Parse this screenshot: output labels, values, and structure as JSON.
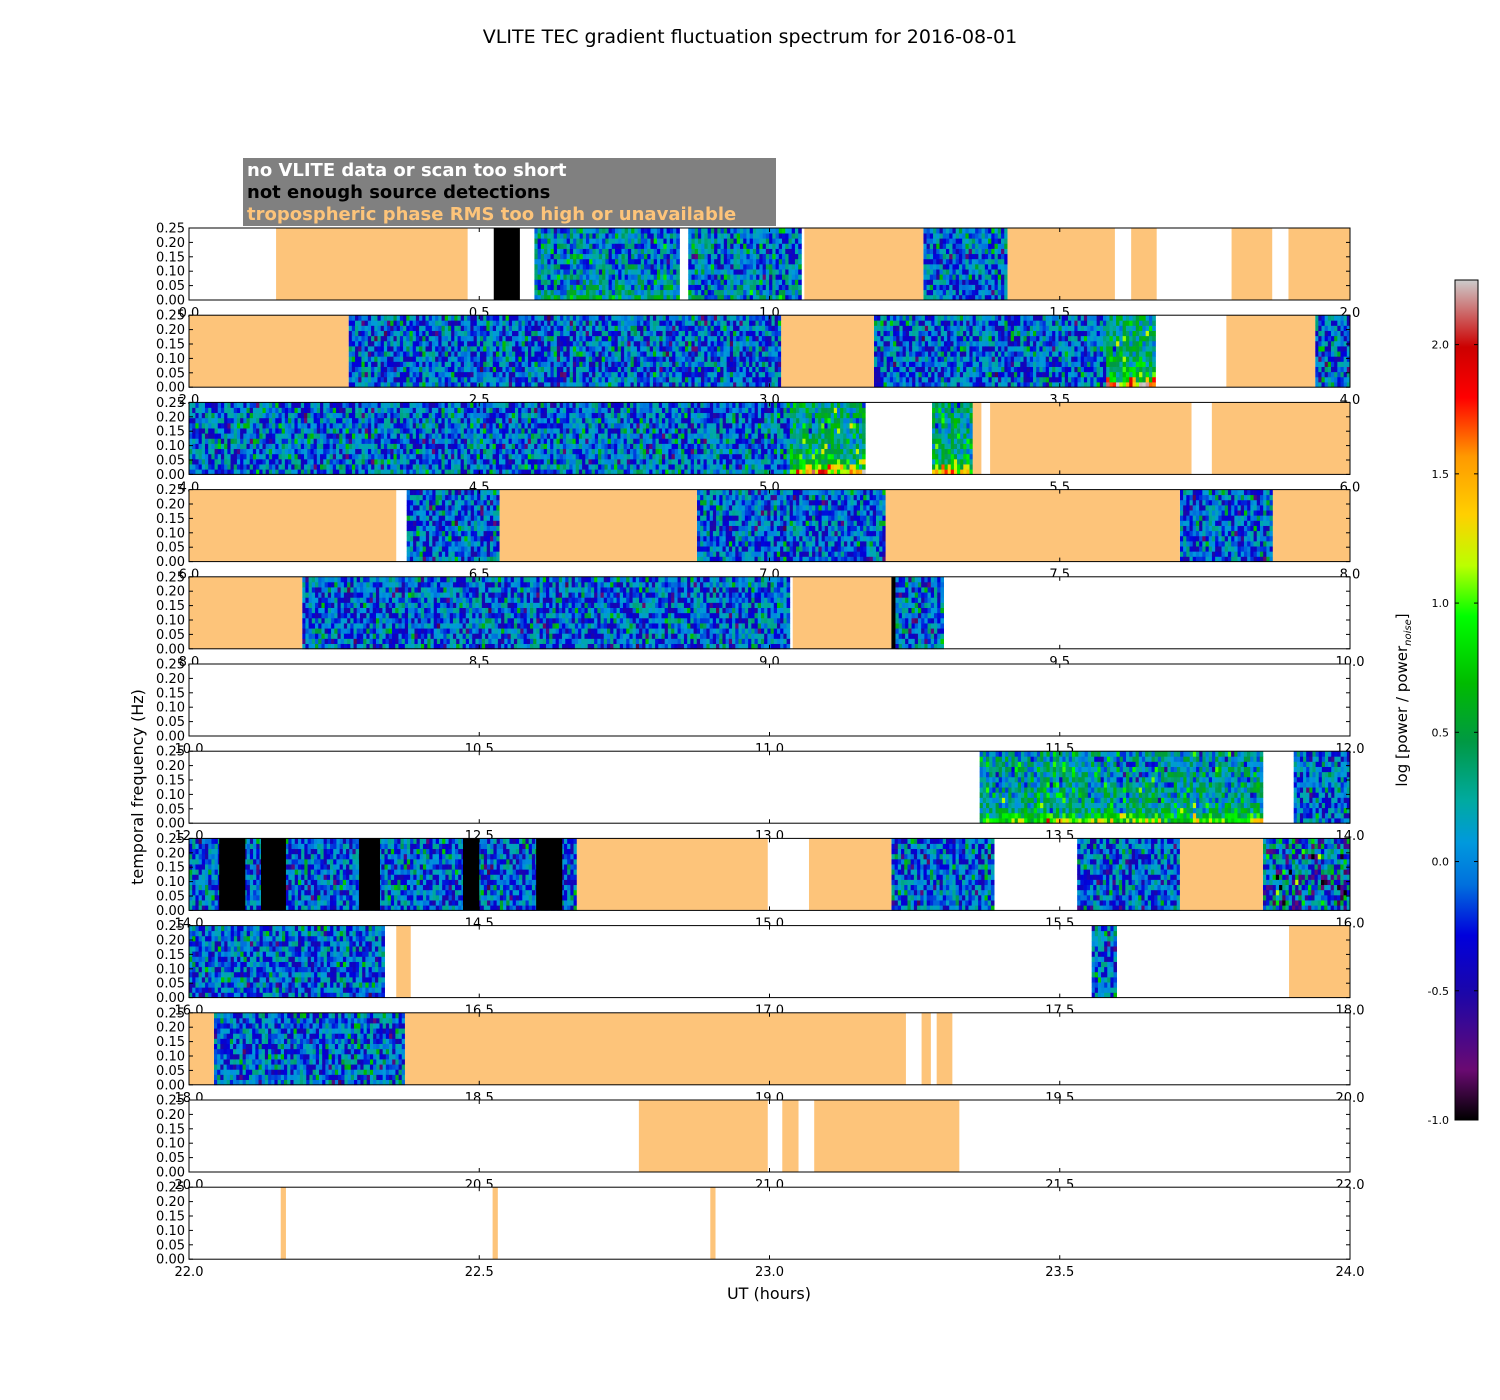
{
  "chart_data": {
    "type": "heatmap",
    "title": "VLITE TEC gradient fluctuation spectrum for 2016-08-01",
    "xlabel": "UT (hours)",
    "ylabel": "temporal frequency (Hz)",
    "colorbar_label": "log [power / power",
    "colorbar_label_sub": "noise",
    "colorbar_label_close": "]",
    "colorbar_range": [
      -1.0,
      2.25
    ],
    "colorbar_ticks": [
      "-1.0",
      "-0.5",
      "0.0",
      "0.5",
      "1.0",
      "1.5",
      "2.0"
    ],
    "colorbar_tick_values": [
      -1.0,
      -0.5,
      0.0,
      0.5,
      1.0,
      1.5,
      2.0
    ],
    "ylim": [
      0.0,
      0.25
    ],
    "y_ticks": [
      "0.00",
      "0.05",
      "0.10",
      "0.15",
      "0.20",
      "0.25"
    ],
    "legend": [
      {
        "label": "no VLITE data or scan too short",
        "color": "#ffffff"
      },
      {
        "label": "not enough source detections",
        "color": "#000000"
      },
      {
        "label": "tropospheric phase RMS too high or unavailable",
        "color": "#fdc47a"
      }
    ],
    "colors": {
      "trop": "#fdc47a",
      "nodet": "#000000",
      "legend_box": "#808080"
    },
    "panels": [
      {
        "xlim": [
          0.0,
          2.0
        ],
        "x_ticks": [
          "0.0",
          "0.5",
          "1.0",
          "1.5",
          "2.0"
        ],
        "x_tick_values": [
          0.0,
          0.5,
          1.0,
          1.5,
          2.0
        ],
        "segments": [
          {
            "type": "trop",
            "start": 0.15,
            "end": 0.48
          },
          {
            "type": "nodet",
            "start": 0.525,
            "end": 0.57
          },
          {
            "type": "spec",
            "start": 0.595,
            "end": 0.845,
            "hot": 0.25
          },
          {
            "type": "spec",
            "start": 0.86,
            "end": 1.055,
            "hot": 0.15
          },
          {
            "type": "trop",
            "start": 1.06,
            "end": 1.265
          },
          {
            "type": "spec",
            "start": 1.265,
            "end": 1.41,
            "hot": 0.0
          },
          {
            "type": "trop",
            "start": 1.41,
            "end": 1.595
          },
          {
            "type": "trop",
            "start": 1.623,
            "end": 1.667
          },
          {
            "type": "trop",
            "start": 1.796,
            "end": 1.866
          },
          {
            "type": "trop",
            "start": 1.894,
            "end": 2.0
          }
        ]
      },
      {
        "xlim": [
          2.0,
          4.0
        ],
        "x_ticks": [
          "2.0",
          "2.5",
          "3.0",
          "3.5",
          "4.0"
        ],
        "x_tick_values": [
          2.0,
          2.5,
          3.0,
          3.5,
          4.0
        ],
        "segments": [
          {
            "type": "trop",
            "start": 2.0,
            "end": 2.275
          },
          {
            "type": "spec",
            "start": 2.275,
            "end": 3.02,
            "hot": 0.0
          },
          {
            "type": "trop",
            "start": 3.02,
            "end": 3.18
          },
          {
            "type": "spec",
            "start": 3.18,
            "end": 3.58,
            "hot": 0.0
          },
          {
            "type": "spec",
            "start": 3.58,
            "end": 3.665,
            "hot": 0.9
          },
          {
            "type": "trop",
            "start": 3.787,
            "end": 3.94
          },
          {
            "type": "spec",
            "start": 3.94,
            "end": 4.0,
            "hot": 0.0
          }
        ]
      },
      {
        "xlim": [
          4.0,
          6.0
        ],
        "x_ticks": [
          "4.0",
          "4.5",
          "5.0",
          "5.5",
          "6.0"
        ],
        "x_tick_values": [
          4.0,
          4.5,
          5.0,
          5.5,
          6.0
        ],
        "segments": [
          {
            "type": "spec",
            "start": 4.0,
            "end": 5.035,
            "hot": 0.05
          },
          {
            "type": "spec",
            "start": 5.035,
            "end": 5.165,
            "hot": 0.85
          },
          {
            "type": "spec",
            "start": 5.28,
            "end": 5.35,
            "hot": 0.8
          },
          {
            "type": "trop",
            "start": 5.35,
            "end": 5.365
          },
          {
            "type": "trop",
            "start": 5.38,
            "end": 5.727
          },
          {
            "type": "trop",
            "start": 5.762,
            "end": 6.0
          }
        ]
      },
      {
        "xlim": [
          6.0,
          8.0
        ],
        "x_ticks": [
          "6.0",
          "6.5",
          "7.0",
          "7.5",
          "8.0"
        ],
        "x_tick_values": [
          6.0,
          6.5,
          7.0,
          7.5,
          8.0
        ],
        "segments": [
          {
            "type": "trop",
            "start": 6.0,
            "end": 6.357
          },
          {
            "type": "spec",
            "start": 6.375,
            "end": 6.535,
            "hot": 0.0
          },
          {
            "type": "trop",
            "start": 6.535,
            "end": 6.875
          },
          {
            "type": "spec",
            "start": 6.875,
            "end": 7.2,
            "hot": 0.0
          },
          {
            "type": "trop",
            "start": 7.2,
            "end": 7.707
          },
          {
            "type": "spec",
            "start": 7.707,
            "end": 7.867,
            "hot": 0.0
          },
          {
            "type": "trop",
            "start": 7.867,
            "end": 8.0
          }
        ]
      },
      {
        "xlim": [
          8.0,
          10.0
        ],
        "x_ticks": [
          "8.0",
          "8.5",
          "9.0",
          "9.5",
          "10.0"
        ],
        "x_tick_values": [
          8.0,
          8.5,
          9.0,
          9.5,
          10.0
        ],
        "segments": [
          {
            "type": "trop",
            "start": 8.0,
            "end": 8.195
          },
          {
            "type": "spec",
            "start": 8.195,
            "end": 9.035,
            "hot": 0.0
          },
          {
            "type": "trop",
            "start": 9.04,
            "end": 9.21
          },
          {
            "type": "nodet",
            "start": 9.21,
            "end": 9.217
          },
          {
            "type": "spec",
            "start": 9.217,
            "end": 9.3,
            "hot": 0.0
          }
        ]
      },
      {
        "xlim": [
          10.0,
          12.0
        ],
        "x_ticks": [
          "10.0",
          "10.5",
          "11.0",
          "11.5",
          "12.0"
        ],
        "x_tick_values": [
          10.0,
          10.5,
          11.0,
          11.5,
          12.0
        ],
        "segments": []
      },
      {
        "xlim": [
          12.0,
          14.0
        ],
        "x_ticks": [
          "12.0",
          "12.5",
          "13.0",
          "13.5",
          "14.0"
        ],
        "x_tick_values": [
          12.0,
          12.5,
          13.0,
          13.5,
          14.0
        ],
        "segments": [
          {
            "type": "spec",
            "start": 13.362,
            "end": 13.85,
            "hot": 0.55
          },
          {
            "type": "spec",
            "start": 13.903,
            "end": 14.0,
            "hot": 0.0
          }
        ]
      },
      {
        "xlim": [
          14.0,
          16.0
        ],
        "x_ticks": [
          "14.0",
          "14.5",
          "15.0",
          "15.5",
          "16.0"
        ],
        "x_tick_values": [
          14.0,
          14.5,
          15.0,
          15.5,
          16.0
        ],
        "segments": [
          {
            "type": "spec",
            "start": 14.0,
            "end": 14.668,
            "hot": 0.0
          },
          {
            "type": "nodet",
            "start": 14.052,
            "end": 14.097
          },
          {
            "type": "nodet",
            "start": 14.124,
            "end": 14.167
          },
          {
            "type": "nodet",
            "start": 14.293,
            "end": 14.329
          },
          {
            "type": "nodet",
            "start": 14.472,
            "end": 14.5
          },
          {
            "type": "nodet",
            "start": 14.598,
            "end": 14.643
          },
          {
            "type": "trop",
            "start": 14.668,
            "end": 14.997
          },
          {
            "type": "trop",
            "start": 15.068,
            "end": 15.21
          },
          {
            "type": "spec",
            "start": 15.21,
            "end": 15.387,
            "hot": 0.0
          },
          {
            "type": "spec",
            "start": 15.53,
            "end": 15.707,
            "hot": 0.0
          },
          {
            "type": "trop",
            "start": 15.707,
            "end": 15.85
          },
          {
            "type": "spec",
            "start": 15.85,
            "end": 16.0,
            "hot": 0.0,
            "speckle": true
          }
        ]
      },
      {
        "xlim": [
          16.0,
          18.0
        ],
        "x_ticks": [
          "16.0",
          "16.5",
          "17.0",
          "17.5",
          "18.0"
        ],
        "x_tick_values": [
          16.0,
          16.5,
          17.0,
          17.5,
          18.0
        ],
        "segments": [
          {
            "type": "spec",
            "start": 16.0,
            "end": 16.337,
            "hot": 0.0
          },
          {
            "type": "trop",
            "start": 16.357,
            "end": 16.382
          },
          {
            "type": "spec",
            "start": 17.555,
            "end": 17.598,
            "hot": 0.0
          },
          {
            "type": "trop",
            "start": 17.895,
            "end": 18.0
          }
        ]
      },
      {
        "xlim": [
          18.0,
          20.0
        ],
        "x_ticks": [
          "18.0",
          "18.5",
          "19.0",
          "19.5",
          "20.0"
        ],
        "x_tick_values": [
          18.0,
          18.5,
          19.0,
          19.5,
          20.0
        ],
        "segments": [
          {
            "type": "trop",
            "start": 18.0,
            "end": 18.043
          },
          {
            "type": "spec",
            "start": 18.043,
            "end": 18.372,
            "hot": 0.0
          },
          {
            "type": "trop",
            "start": 18.372,
            "end": 19.235
          },
          {
            "type": "trop",
            "start": 19.262,
            "end": 19.278
          },
          {
            "type": "trop",
            "start": 19.288,
            "end": 19.315
          }
        ]
      },
      {
        "xlim": [
          20.0,
          22.0
        ],
        "x_ticks": [
          "20.0",
          "20.5",
          "21.0",
          "21.5",
          "22.0"
        ],
        "x_tick_values": [
          20.0,
          20.5,
          21.0,
          21.5,
          22.0
        ],
        "segments": [
          {
            "type": "trop",
            "start": 20.775,
            "end": 20.997
          },
          {
            "type": "trop",
            "start": 21.022,
            "end": 21.05
          },
          {
            "type": "trop",
            "start": 21.077,
            "end": 21.327
          }
        ]
      },
      {
        "xlim": [
          22.0,
          24.0
        ],
        "x_ticks": [
          "22.0",
          "22.5",
          "23.0",
          "23.5",
          "24.0"
        ],
        "x_tick_values": [
          22.0,
          22.5,
          23.0,
          23.5,
          24.0
        ],
        "segments": [
          {
            "type": "trop",
            "start": 22.158,
            "end": 22.167
          },
          {
            "type": "trop",
            "start": 22.523,
            "end": 22.532
          },
          {
            "type": "trop",
            "start": 22.898,
            "end": 22.907
          }
        ]
      }
    ]
  }
}
